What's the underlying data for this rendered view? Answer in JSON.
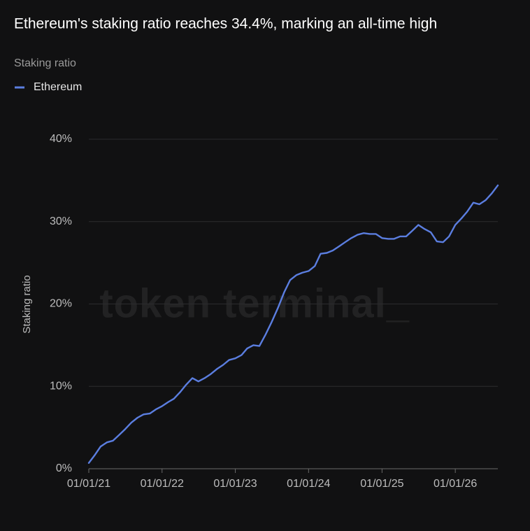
{
  "chart_data": {
    "type": "line",
    "title": "Ethereum's staking ratio reaches 34.4%, marking an all-time high",
    "subtitle": "Staking ratio",
    "y_label": "Staking ratio",
    "watermark": "token terminal_",
    "grid": true,
    "legend": "top-left",
    "x": [
      "01/01/21",
      "02/01/21",
      "03/01/21",
      "04/01/21",
      "05/01/21",
      "06/01/21",
      "07/01/21",
      "08/01/21",
      "09/01/21",
      "10/01/21",
      "11/01/21",
      "12/01/21",
      "01/01/22",
      "02/01/22",
      "03/01/22",
      "04/01/22",
      "05/01/22",
      "06/01/22",
      "07/01/22",
      "08/01/22",
      "09/01/22",
      "10/01/22",
      "11/01/22",
      "12/01/22",
      "01/01/23",
      "02/01/23",
      "03/01/23",
      "04/01/23",
      "05/01/23",
      "06/01/23",
      "07/01/23",
      "08/01/23",
      "09/01/23",
      "10/01/23",
      "11/01/23",
      "12/01/23",
      "01/01/24",
      "02/01/24",
      "03/01/24",
      "04/01/24",
      "05/01/24",
      "06/01/24",
      "07/01/24",
      "08/01/24",
      "09/01/24",
      "10/01/24",
      "11/01/24",
      "12/01/24",
      "01/01/25",
      "02/01/25",
      "03/01/25",
      "04/01/25",
      "05/01/25",
      "06/01/25",
      "07/01/25",
      "08/01/25",
      "09/01/25",
      "10/01/25",
      "11/01/25",
      "12/01/25",
      "01/01/26",
      "02/01/26",
      "03/01/26",
      "04/01/26",
      "05/01/26",
      "06/01/26",
      "07/01/26",
      "08/01/26"
    ],
    "series": [
      {
        "name": "Ethereum",
        "color": "#5b7ee0",
        "values": [
          0.7,
          1.7,
          2.7,
          3.2,
          3.4,
          4.1,
          4.8,
          5.6,
          6.2,
          6.6,
          6.7,
          7.2,
          7.6,
          8.1,
          8.5,
          9.3,
          10.2,
          11.0,
          10.6,
          11.0,
          11.5,
          12.1,
          12.6,
          13.2,
          13.4,
          13.8,
          14.6,
          15.0,
          14.9,
          16.3,
          17.8,
          19.5,
          21.4,
          22.9,
          23.5,
          23.8,
          24.0,
          24.6,
          26.1,
          26.2,
          26.5,
          27.0,
          27.5,
          28.0,
          28.4,
          28.6,
          28.5,
          28.5,
          28.0,
          27.9,
          27.9,
          28.2,
          28.2,
          28.9,
          29.6,
          29.1,
          28.7,
          27.6,
          27.5,
          28.2,
          29.6,
          30.4,
          31.2,
          32.3,
          32.1,
          32.6,
          33.4,
          34.4
        ]
      }
    ],
    "xlim": [
      "01/01/21",
      "08/01/26"
    ],
    "xticks": [
      "01/01/21",
      "01/01/22",
      "01/01/23",
      "01/01/24",
      "01/01/25",
      "01/01/26"
    ],
    "ylim": [
      0,
      40
    ],
    "yticks": [
      {
        "value": 0,
        "label": "0%"
      },
      {
        "value": 10,
        "label": "10%"
      },
      {
        "value": 20,
        "label": "20%"
      },
      {
        "value": 30,
        "label": "30%"
      },
      {
        "value": 40,
        "label": "40%"
      }
    ]
  }
}
